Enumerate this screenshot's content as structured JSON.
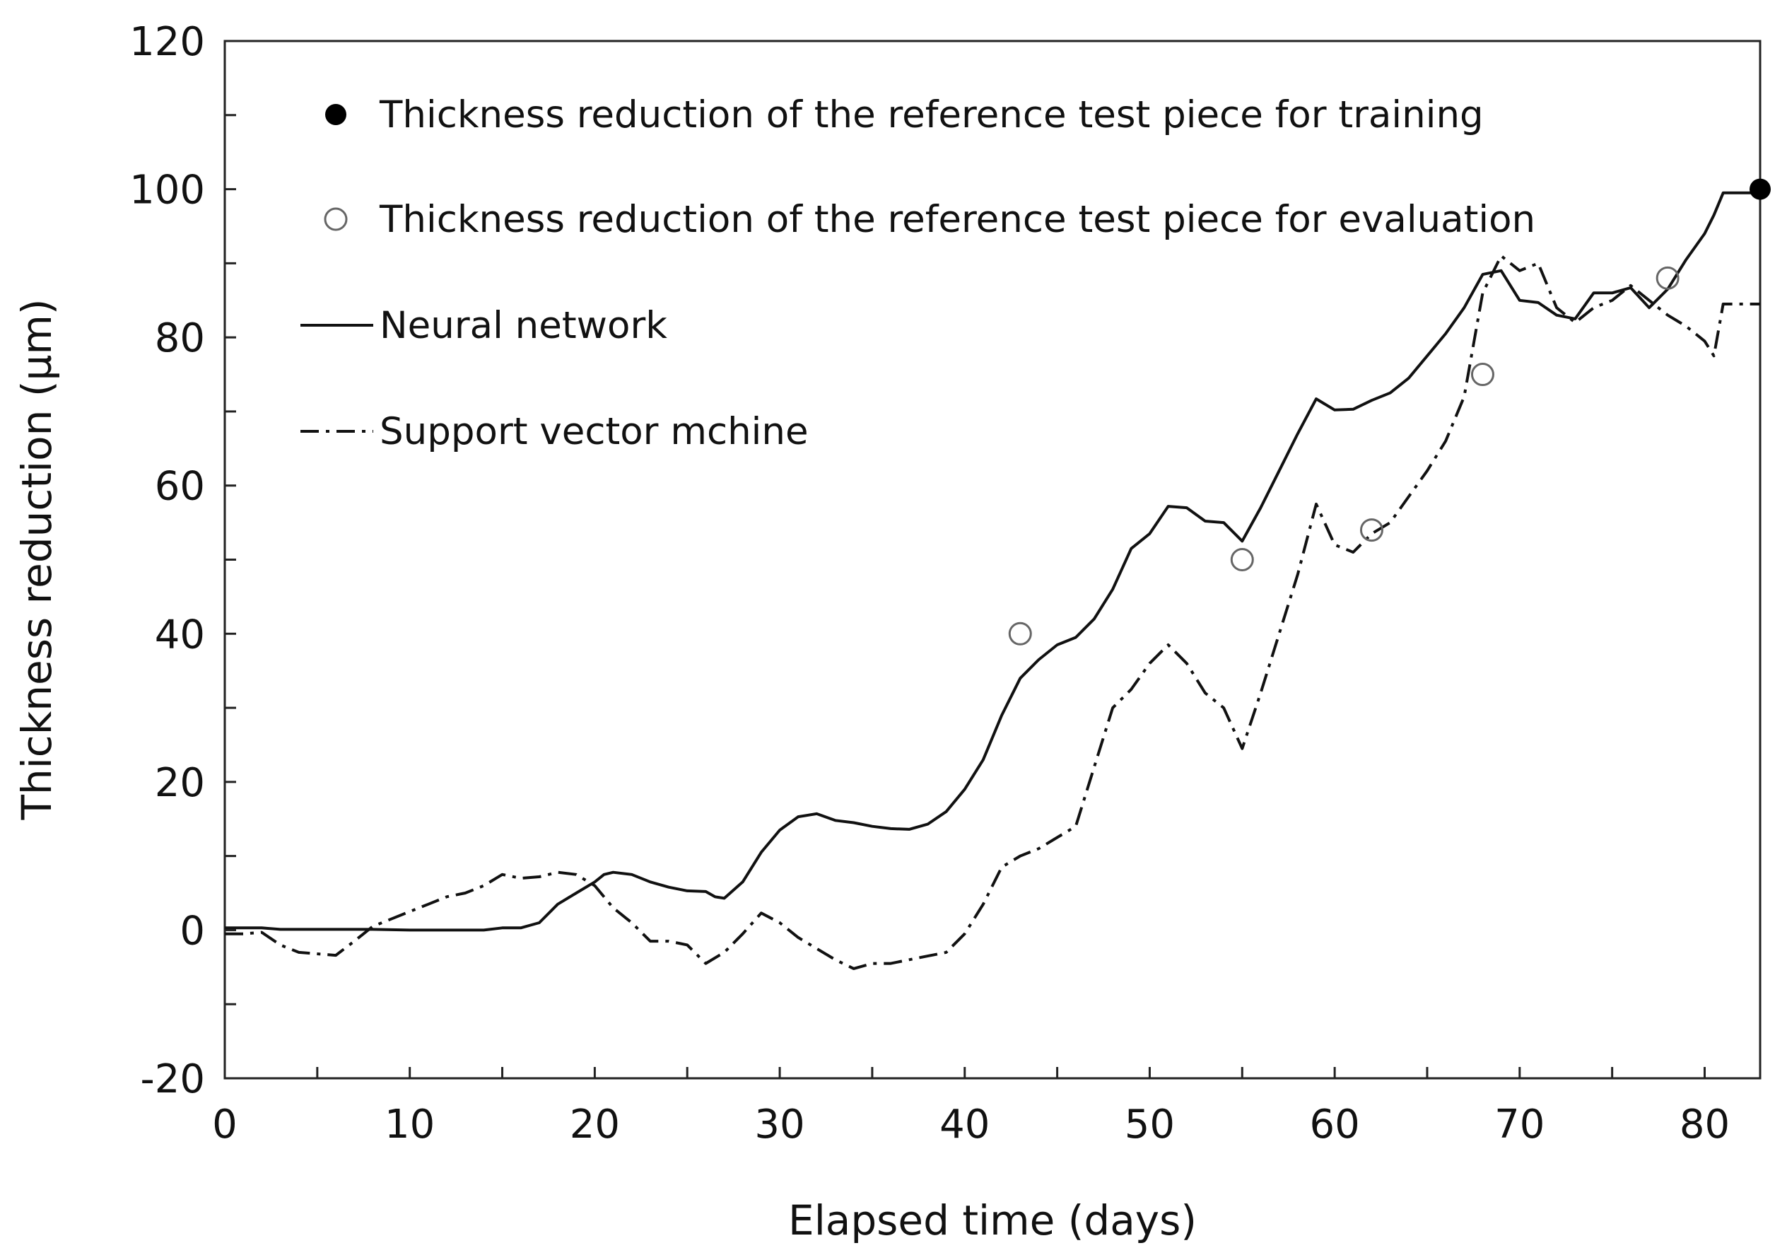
{
  "chart_data": {
    "type": "line",
    "title": "",
    "xlabel": "Elapsed time (days)",
    "ylabel": "Thickness reduction (µm)",
    "xlim": [
      0,
      83
    ],
    "ylim": [
      -20,
      120
    ],
    "x_ticks": [
      0,
      10,
      20,
      30,
      40,
      50,
      60,
      70,
      80
    ],
    "x_tick_labels": [
      "0",
      "10",
      "20",
      "30",
      "40",
      "50",
      "60",
      "70",
      "80"
    ],
    "y_ticks": [
      -20,
      0,
      20,
      40,
      60,
      80,
      100,
      120
    ],
    "y_tick_labels": [
      "-20",
      "0",
      "20",
      "40",
      "60",
      "80",
      "100",
      "120"
    ],
    "grid": false,
    "legend_position": "top-left",
    "legend": [
      "Thickness reduction of the reference test piece for training",
      "Thickness reduction of the reference test piece for evaluation",
      "Neural network",
      "Support vector mchine"
    ],
    "series": [
      {
        "name": "Thickness reduction of the reference test piece for training",
        "kind": "marker-filled",
        "points": [
          [
            83,
            100
          ]
        ]
      },
      {
        "name": "Thickness reduction of the reference test piece for evaluation",
        "kind": "marker-open",
        "points": [
          [
            43,
            40
          ],
          [
            55,
            50
          ],
          [
            62,
            54
          ],
          [
            68,
            75
          ],
          [
            78,
            88
          ]
        ]
      },
      {
        "name": "Neural network",
        "kind": "line-solid",
        "points": [
          [
            0,
            0.3
          ],
          [
            2,
            0.3
          ],
          [
            3,
            0.1
          ],
          [
            8,
            0.1
          ],
          [
            10,
            0
          ],
          [
            14,
            0
          ],
          [
            15,
            0.3
          ],
          [
            16,
            0.3
          ],
          [
            17,
            1
          ],
          [
            18,
            3.5
          ],
          [
            19,
            5
          ],
          [
            20,
            6.5
          ],
          [
            20.5,
            7.5
          ],
          [
            21,
            7.8
          ],
          [
            22,
            7.5
          ],
          [
            23,
            6.5
          ],
          [
            24,
            5.8
          ],
          [
            25,
            5.3
          ],
          [
            26,
            5.2
          ],
          [
            26.5,
            4.5
          ],
          [
            27,
            4.3
          ],
          [
            28,
            6.5
          ],
          [
            29,
            10.5
          ],
          [
            30,
            13.5
          ],
          [
            31,
            15.3
          ],
          [
            32,
            15.7
          ],
          [
            33,
            14.8
          ],
          [
            34,
            14.5
          ],
          [
            35,
            14
          ],
          [
            36,
            13.7
          ],
          [
            37,
            13.6
          ],
          [
            38,
            14.3
          ],
          [
            39,
            16
          ],
          [
            40,
            19
          ],
          [
            41,
            23
          ],
          [
            42,
            29
          ],
          [
            43,
            34
          ],
          [
            44,
            36.5
          ],
          [
            45,
            38.5
          ],
          [
            46,
            39.5
          ],
          [
            47,
            42
          ],
          [
            48,
            46
          ],
          [
            49,
            51.5
          ],
          [
            50,
            53.5
          ],
          [
            51,
            57.2
          ],
          [
            52,
            57
          ],
          [
            53,
            55.2
          ],
          [
            54,
            55
          ],
          [
            55,
            52.5
          ],
          [
            56,
            57
          ],
          [
            57,
            62
          ],
          [
            58,
            67
          ],
          [
            59,
            71.7
          ],
          [
            60,
            70.2
          ],
          [
            61,
            70.3
          ],
          [
            62,
            71.5
          ],
          [
            63,
            72.5
          ],
          [
            64,
            74.5
          ],
          [
            65,
            77.5
          ],
          [
            66,
            80.5
          ],
          [
            67,
            84
          ],
          [
            68,
            88.5
          ],
          [
            69,
            89
          ],
          [
            70,
            85
          ],
          [
            71,
            84.7
          ],
          [
            72,
            83
          ],
          [
            73,
            82.5
          ],
          [
            74,
            86
          ],
          [
            75,
            86
          ],
          [
            76,
            86.7
          ],
          [
            77,
            84
          ],
          [
            78,
            86.5
          ],
          [
            79,
            90.5
          ],
          [
            80,
            94
          ],
          [
            80.5,
            96.5
          ],
          [
            81,
            99.5
          ],
          [
            83,
            99.5
          ]
        ]
      },
      {
        "name": "Support vector mchine",
        "kind": "line-dashdot",
        "points": [
          [
            0,
            -0.5
          ],
          [
            1,
            -0.5
          ],
          [
            2,
            -0.3
          ],
          [
            3,
            -2
          ],
          [
            4,
            -3
          ],
          [
            5,
            -3.2
          ],
          [
            6,
            -3.4
          ],
          [
            7,
            -1.5
          ],
          [
            8,
            0.5
          ],
          [
            9,
            1.5
          ],
          [
            10,
            2.5
          ],
          [
            11,
            3.5
          ],
          [
            12,
            4.5
          ],
          [
            13,
            5
          ],
          [
            14,
            6
          ],
          [
            15,
            7.5
          ],
          [
            16,
            7
          ],
          [
            17,
            7.2
          ],
          [
            18,
            7.8
          ],
          [
            19,
            7.5
          ],
          [
            20,
            6
          ],
          [
            21,
            3
          ],
          [
            22,
            1
          ],
          [
            23,
            -1.5
          ],
          [
            24,
            -1.5
          ],
          [
            25,
            -2
          ],
          [
            26,
            -4.5
          ],
          [
            27,
            -3
          ],
          [
            28,
            -0.5
          ],
          [
            29,
            2.3
          ],
          [
            30,
            1
          ],
          [
            31,
            -1
          ],
          [
            32,
            -2.5
          ],
          [
            33,
            -4
          ],
          [
            34,
            -5.2
          ],
          [
            35,
            -4.5
          ],
          [
            36,
            -4.5
          ],
          [
            37,
            -4
          ],
          [
            38,
            -3.5
          ],
          [
            39,
            -3
          ],
          [
            40,
            -0.5
          ],
          [
            41,
            3.5
          ],
          [
            42,
            8.5
          ],
          [
            43,
            10
          ],
          [
            44,
            11
          ],
          [
            45,
            12.5
          ],
          [
            46,
            14
          ],
          [
            47,
            22
          ],
          [
            48,
            30
          ],
          [
            49,
            32.5
          ],
          [
            50,
            36
          ],
          [
            51,
            38.5
          ],
          [
            52,
            36
          ],
          [
            53,
            32
          ],
          [
            54,
            30
          ],
          [
            55,
            24.5
          ],
          [
            56,
            32
          ],
          [
            57,
            40
          ],
          [
            58,
            48
          ],
          [
            59,
            57.5
          ],
          [
            60,
            52
          ],
          [
            61,
            51
          ],
          [
            62,
            53.5
          ],
          [
            63,
            55
          ],
          [
            64,
            58.5
          ],
          [
            65,
            62
          ],
          [
            66,
            66
          ],
          [
            67,
            72
          ],
          [
            68,
            86
          ],
          [
            69,
            91
          ],
          [
            70,
            89
          ],
          [
            71,
            90
          ],
          [
            72,
            84
          ],
          [
            73,
            82
          ],
          [
            74,
            84
          ],
          [
            75,
            85
          ],
          [
            76,
            87
          ],
          [
            77,
            85
          ],
          [
            78,
            83
          ],
          [
            79,
            81.5
          ],
          [
            80,
            79.5
          ],
          [
            80.5,
            77.5
          ],
          [
            81,
            84.5
          ],
          [
            83,
            84.5
          ]
        ]
      }
    ]
  }
}
